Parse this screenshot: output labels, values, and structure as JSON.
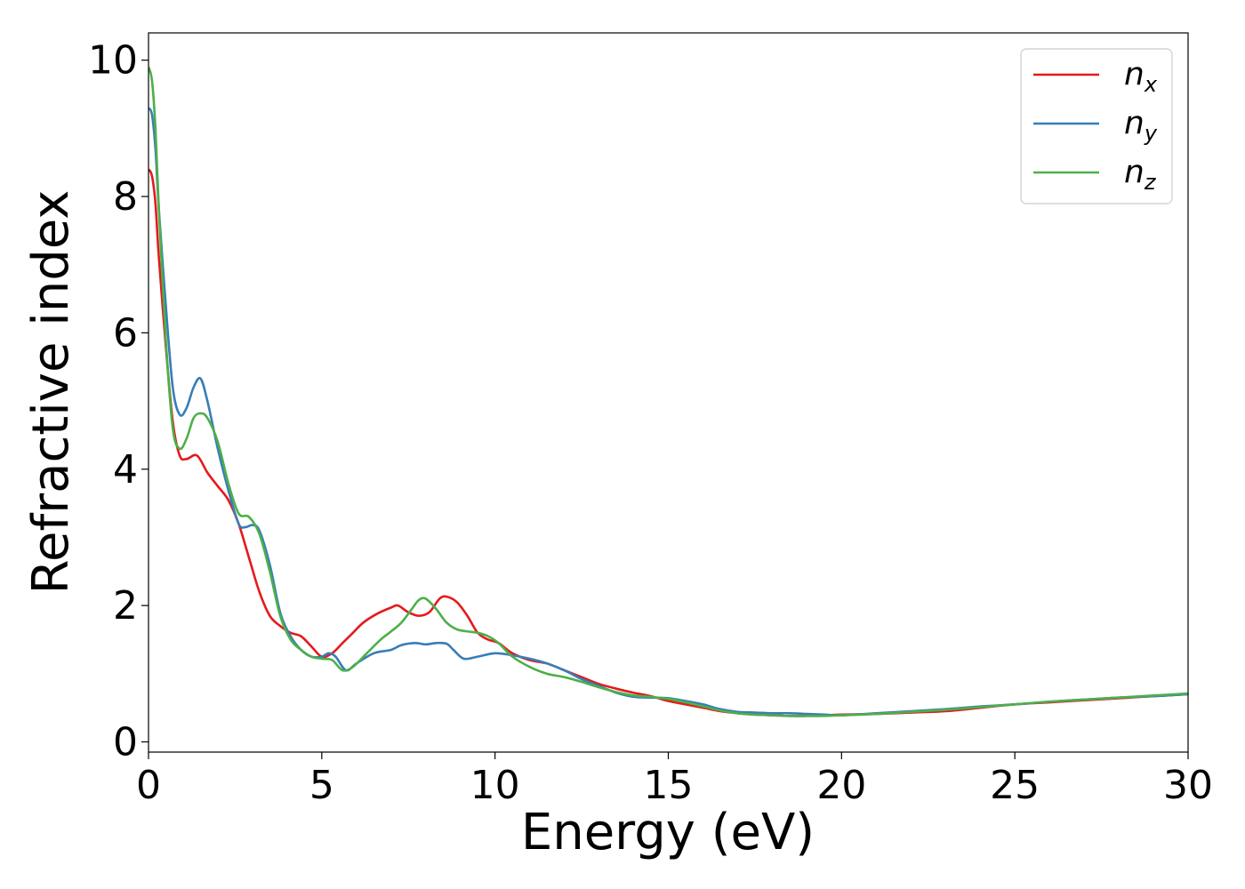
{
  "chart_data": {
    "type": "line",
    "title": "",
    "xlabel": "Energy (eV)",
    "ylabel": "Refractive index",
    "xlim": [
      0,
      30
    ],
    "ylim": [
      -0.15,
      10.4
    ],
    "xticks": [
      0,
      5,
      10,
      15,
      20,
      25,
      30
    ],
    "yticks": [
      0,
      2,
      4,
      6,
      8,
      10
    ],
    "grid": false,
    "legend_position": "top-right",
    "series": [
      {
        "name": "n",
        "subscript": "x",
        "color": "#e41a1c",
        "x": [
          0,
          0.1,
          0.2,
          0.3,
          0.5,
          0.7,
          0.9,
          1.1,
          1.4,
          1.7,
          2.0,
          2.3,
          2.6,
          2.9,
          3.2,
          3.5,
          3.8,
          4.1,
          4.4,
          4.7,
          5.0,
          5.3,
          5.6,
          5.9,
          6.2,
          6.6,
          7.0,
          7.2,
          7.5,
          7.8,
          8.1,
          8.4,
          8.6,
          8.9,
          9.2,
          9.5,
          9.8,
          10.1,
          10.5,
          11.0,
          11.5,
          12.0,
          12.5,
          13.0,
          13.5,
          14.0,
          14.5,
          15.0,
          15.5,
          16.0,
          16.5,
          17.0,
          17.5,
          18.0,
          18.5,
          19.0,
          19.5,
          20.0,
          21.0,
          22.0,
          23.0,
          24.0,
          25.0,
          26.0,
          27.0,
          28.0,
          29.0,
          30.0
        ],
        "values": [
          8.4,
          8.3,
          7.9,
          7.1,
          5.8,
          4.7,
          4.2,
          4.15,
          4.2,
          3.95,
          3.75,
          3.55,
          3.2,
          2.7,
          2.2,
          1.85,
          1.7,
          1.6,
          1.55,
          1.4,
          1.25,
          1.3,
          1.45,
          1.6,
          1.75,
          1.88,
          1.97,
          2.0,
          1.9,
          1.85,
          1.9,
          2.1,
          2.13,
          2.05,
          1.85,
          1.6,
          1.5,
          1.45,
          1.3,
          1.2,
          1.15,
          1.05,
          0.95,
          0.85,
          0.78,
          0.72,
          0.67,
          0.6,
          0.55,
          0.5,
          0.45,
          0.42,
          0.4,
          0.39,
          0.38,
          0.38,
          0.39,
          0.4,
          0.41,
          0.43,
          0.45,
          0.5,
          0.55,
          0.58,
          0.61,
          0.64,
          0.67,
          0.7
        ]
      },
      {
        "name": "n",
        "subscript": "y",
        "color": "#377eb8",
        "x": [
          0,
          0.1,
          0.2,
          0.3,
          0.5,
          0.7,
          0.9,
          1.1,
          1.3,
          1.5,
          1.7,
          2.0,
          2.3,
          2.6,
          2.8,
          3.0,
          3.2,
          3.5,
          3.8,
          4.1,
          4.4,
          4.7,
          5.0,
          5.2,
          5.4,
          5.7,
          6.0,
          6.5,
          7.0,
          7.3,
          7.7,
          8.0,
          8.3,
          8.6,
          8.8,
          9.1,
          9.5,
          10.0,
          10.5,
          11.0,
          11.5,
          12.0,
          12.5,
          13.0,
          13.5,
          14.0,
          14.5,
          15.0,
          15.5,
          16.0,
          16.5,
          17.0,
          17.5,
          18.0,
          18.5,
          19.0,
          19.5,
          20.0,
          21.0,
          22.0,
          23.0,
          24.0,
          25.0,
          26.0,
          27.0,
          28.0,
          29.0,
          30.0
        ],
        "values": [
          9.3,
          9.2,
          8.7,
          7.8,
          6.4,
          5.2,
          4.8,
          4.9,
          5.2,
          5.33,
          5.0,
          4.3,
          3.7,
          3.2,
          3.15,
          3.18,
          3.1,
          2.6,
          1.9,
          1.55,
          1.35,
          1.25,
          1.25,
          1.3,
          1.25,
          1.05,
          1.15,
          1.3,
          1.35,
          1.42,
          1.45,
          1.43,
          1.45,
          1.44,
          1.35,
          1.22,
          1.25,
          1.3,
          1.27,
          1.22,
          1.15,
          1.05,
          0.92,
          0.82,
          0.72,
          0.66,
          0.65,
          0.64,
          0.6,
          0.55,
          0.48,
          0.44,
          0.43,
          0.42,
          0.42,
          0.41,
          0.4,
          0.39,
          0.42,
          0.45,
          0.48,
          0.52,
          0.55,
          0.59,
          0.62,
          0.65,
          0.67,
          0.7
        ]
      },
      {
        "name": "n",
        "subscript": "z",
        "color": "#4daf4a",
        "x": [
          0,
          0.1,
          0.2,
          0.3,
          0.5,
          0.7,
          0.9,
          1.1,
          1.3,
          1.5,
          1.7,
          2.0,
          2.3,
          2.6,
          2.9,
          3.2,
          3.5,
          3.8,
          4.1,
          4.4,
          4.7,
          5.0,
          5.3,
          5.6,
          5.9,
          6.3,
          6.7,
          7.0,
          7.3,
          7.6,
          7.8,
          8.0,
          8.3,
          8.6,
          8.9,
          9.2,
          9.5,
          9.8,
          10.1,
          10.5,
          11.0,
          11.5,
          12.0,
          12.5,
          13.0,
          13.5,
          14.0,
          14.5,
          15.0,
          15.5,
          16.0,
          16.5,
          17.0,
          17.5,
          18.0,
          18.5,
          19.0,
          19.5,
          20.0,
          21.0,
          22.0,
          23.0,
          24.0,
          25.0,
          26.0,
          27.0,
          28.0,
          29.0,
          30.0
        ],
        "values": [
          9.9,
          9.7,
          9.0,
          7.8,
          5.9,
          4.6,
          4.3,
          4.45,
          4.75,
          4.82,
          4.75,
          4.4,
          3.8,
          3.35,
          3.3,
          3.05,
          2.5,
          1.85,
          1.5,
          1.35,
          1.25,
          1.22,
          1.2,
          1.05,
          1.1,
          1.3,
          1.5,
          1.62,
          1.75,
          1.95,
          2.08,
          2.1,
          1.95,
          1.75,
          1.65,
          1.62,
          1.6,
          1.55,
          1.45,
          1.25,
          1.1,
          1.0,
          0.95,
          0.88,
          0.8,
          0.73,
          0.68,
          0.66,
          0.63,
          0.58,
          0.52,
          0.46,
          0.42,
          0.4,
          0.39,
          0.38,
          0.38,
          0.38,
          0.39,
          0.41,
          0.44,
          0.47,
          0.51,
          0.55,
          0.59,
          0.62,
          0.65,
          0.68,
          0.71
        ]
      }
    ]
  }
}
